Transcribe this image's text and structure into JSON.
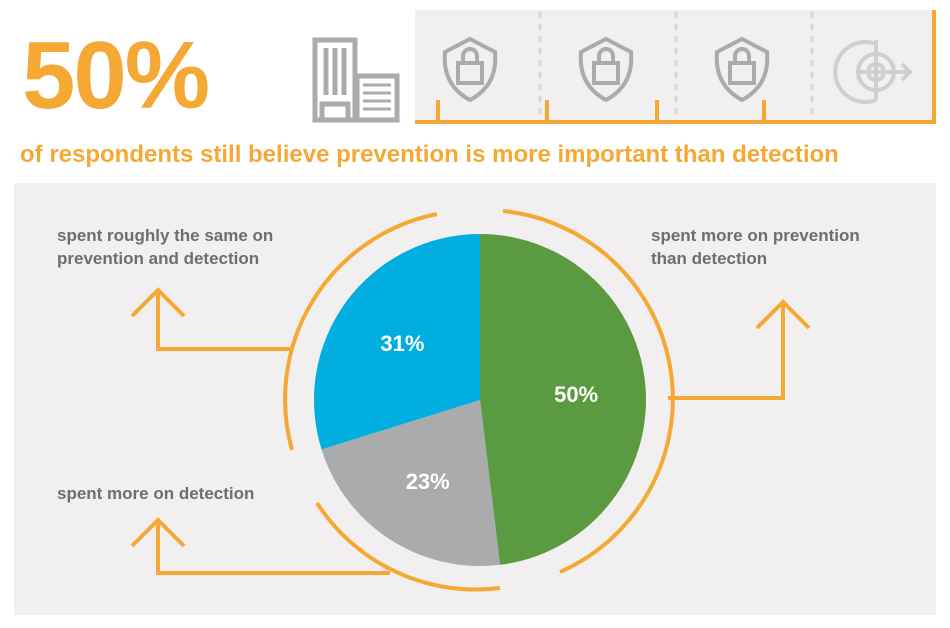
{
  "headline": {
    "stat": "50%",
    "subtitle": "of respondents still believe prevention is more important than detection"
  },
  "icons": [
    "building-icon",
    "shield-lock-icon",
    "shield-lock-icon",
    "shield-lock-icon",
    "target-arrow-icon"
  ],
  "colors": {
    "accent": "#f6a834",
    "green": "#5a9a41",
    "gray": "#a9abac",
    "blue": "#00aedf"
  },
  "chart_data": {
    "type": "pie",
    "title": "",
    "slices": [
      {
        "name": "spent more on prevention than detection",
        "value": 50,
        "label": "50%",
        "color": "#5a9a41"
      },
      {
        "name": "spent more on detection",
        "value": 23,
        "label": "23%",
        "color": "#a9abac"
      },
      {
        "name": "spent roughly the same on prevention and detection",
        "value": 31,
        "label": "31%",
        "color": "#00aedf"
      }
    ]
  },
  "labels": {
    "right": "spent more on prevention\nthan detection",
    "top_left": "spent roughly the same on\nprevention and detection",
    "bottom_left": "spent more on detection"
  }
}
